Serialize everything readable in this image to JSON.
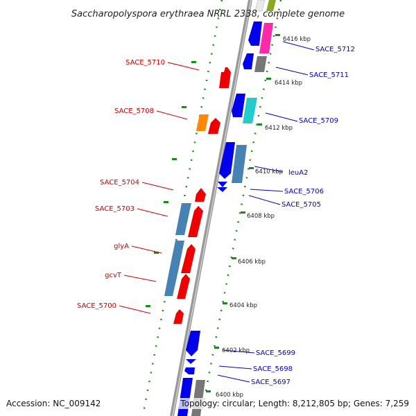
{
  "title": "Saccharopolyspora erythraea NRRL 2338, complete genome",
  "footer": {
    "accession": "Accession: NC_009142",
    "topology": "Topology: circular; Length: 8,212,805 bp; Genes: 7,259"
  },
  "colors": {
    "left_label": "#cc0000",
    "right_label": "#0000cc",
    "dotted_track": "#1a8a1a",
    "backbone": "#888888"
  },
  "ticks": [
    "6416 kbp",
    "6414 kbp",
    "6412 kbp",
    "6410 kbp",
    "6408 kbp",
    "6406 kbp",
    "6404 kbp",
    "6402 kbp",
    "6400 kbp"
  ],
  "left_labels": [
    "SACE_5710",
    "SACE_5708",
    "SACE_5704",
    "SACE_5703",
    "glyA",
    "gcvT",
    "SACE_5700"
  ],
  "right_labels": [
    "SACE_5712",
    "SACE_5711",
    "SACE_5709",
    "leuA2",
    "SACE_5706",
    "SACE_5705",
    "SACE_5699",
    "SACE_5698",
    "SACE_5697"
  ]
}
